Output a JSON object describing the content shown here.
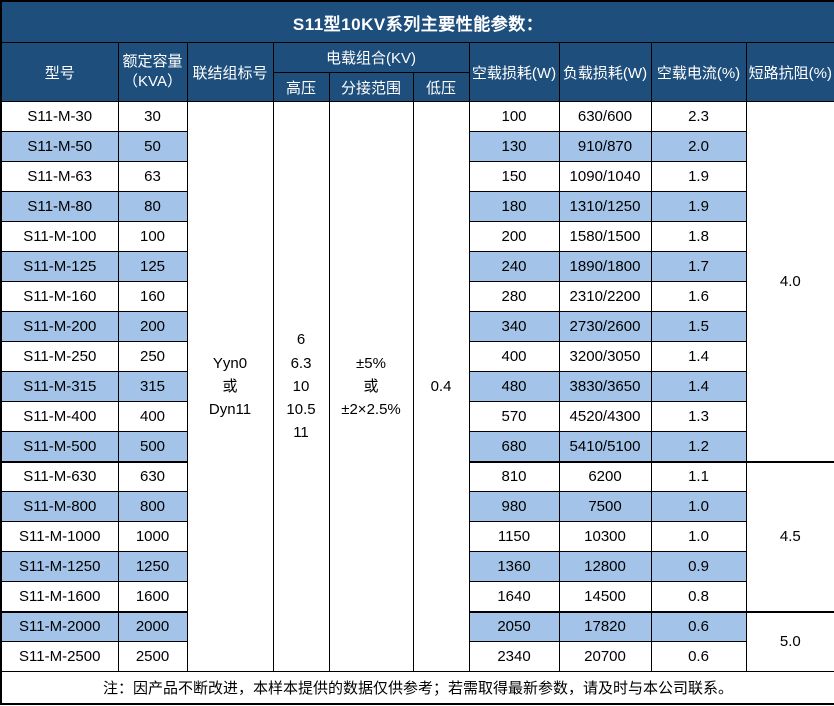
{
  "title": "S11型10KV系列主要性能参数：",
  "colors": {
    "header_bg": "#1e4e7c",
    "alt_row_bg": "#a3c4e8",
    "grid": "#000000",
    "header_text": "#ffffff",
    "body_text": "#000000",
    "cell_bg": "#ffffff"
  },
  "header": {
    "model": "型号",
    "capacity": "额定容量\n（KVA）",
    "connection": "联结组标号",
    "voltage_group": "电载组合(KV)",
    "hv": "高压",
    "tap_range": "分接范围",
    "lv": "低压",
    "no_load_loss": "空载损耗(W)",
    "load_loss": "负载损耗(W)",
    "no_load_current": "空载电流(%)",
    "impedance": "短路抗阻(%)"
  },
  "merged": {
    "connection": "Yyn0\n或\nDyn11",
    "hv": "6\n6.3\n10\n10.5\n11",
    "tap_range": "±5%\n或\n±2×2.5%",
    "lv": "0.4",
    "impedance_groups": [
      {
        "value": "4.0",
        "rows": 12
      },
      {
        "value": "4.5",
        "rows": 5
      },
      {
        "value": "5.0",
        "rows": 2
      }
    ]
  },
  "rows": [
    {
      "model": "S11-M-30",
      "capacity": "30",
      "no_load_loss": "100",
      "load_loss": "630/600",
      "no_load_current": "2.3"
    },
    {
      "model": "S11-M-50",
      "capacity": "50",
      "no_load_loss": "130",
      "load_loss": "910/870",
      "no_load_current": "2.0"
    },
    {
      "model": "S11-M-63",
      "capacity": "63",
      "no_load_loss": "150",
      "load_loss": "1090/1040",
      "no_load_current": "1.9"
    },
    {
      "model": "S11-M-80",
      "capacity": "80",
      "no_load_loss": "180",
      "load_loss": "1310/1250",
      "no_load_current": "1.9"
    },
    {
      "model": "S11-M-100",
      "capacity": "100",
      "no_load_loss": "200",
      "load_loss": "1580/1500",
      "no_load_current": "1.8"
    },
    {
      "model": "S11-M-125",
      "capacity": "125",
      "no_load_loss": "240",
      "load_loss": "1890/1800",
      "no_load_current": "1.7"
    },
    {
      "model": "S11-M-160",
      "capacity": "160",
      "no_load_loss": "280",
      "load_loss": "2310/2200",
      "no_load_current": "1.6"
    },
    {
      "model": "S11-M-200",
      "capacity": "200",
      "no_load_loss": "340",
      "load_loss": "2730/2600",
      "no_load_current": "1.5"
    },
    {
      "model": "S11-M-250",
      "capacity": "250",
      "no_load_loss": "400",
      "load_loss": "3200/3050",
      "no_load_current": "1.4"
    },
    {
      "model": "S11-M-315",
      "capacity": "315",
      "no_load_loss": "480",
      "load_loss": "3830/3650",
      "no_load_current": "1.4"
    },
    {
      "model": "S11-M-400",
      "capacity": "400",
      "no_load_loss": "570",
      "load_loss": "4520/4300",
      "no_load_current": "1.3"
    },
    {
      "model": "S11-M-500",
      "capacity": "500",
      "no_load_loss": "680",
      "load_loss": "5410/5100",
      "no_load_current": "1.2"
    },
    {
      "model": "S11-M-630",
      "capacity": "630",
      "no_load_loss": "810",
      "load_loss": "6200",
      "no_load_current": "1.1"
    },
    {
      "model": "S11-M-800",
      "capacity": "800",
      "no_load_loss": "980",
      "load_loss": "7500",
      "no_load_current": "1.0"
    },
    {
      "model": "S11-M-1000",
      "capacity": "1000",
      "no_load_loss": "1150",
      "load_loss": "10300",
      "no_load_current": "1.0"
    },
    {
      "model": "S11-M-1250",
      "capacity": "1250",
      "no_load_loss": "1360",
      "load_loss": "12800",
      "no_load_current": "0.9"
    },
    {
      "model": "S11-M-1600",
      "capacity": "1600",
      "no_load_loss": "1640",
      "load_loss": "14500",
      "no_load_current": "0.8"
    },
    {
      "model": "S11-M-2000",
      "capacity": "2000",
      "no_load_loss": "2050",
      "load_loss": "17820",
      "no_load_current": "0.6"
    },
    {
      "model": "S11-M-2500",
      "capacity": "2500",
      "no_load_loss": "2340",
      "load_loss": "20700",
      "no_load_current": "0.6"
    }
  ],
  "footer": "注：因产品不断改进，本样本提供的数据仅供参考；若需取得最新参数，请及时与本公司联系。"
}
